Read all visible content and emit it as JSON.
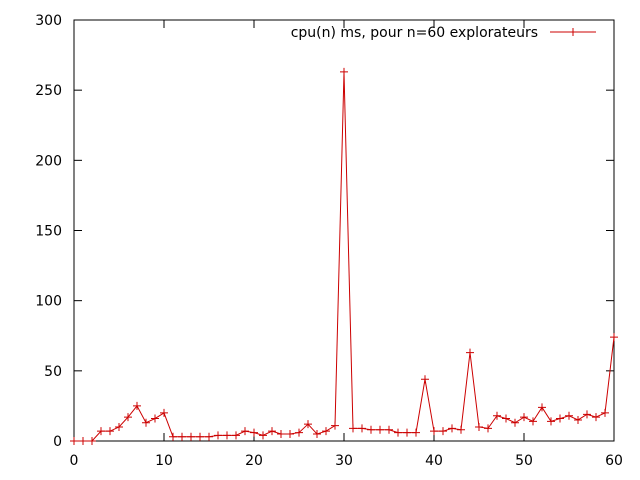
{
  "chart_data": {
    "type": "line",
    "xlim": [
      0,
      60
    ],
    "ylim": [
      0,
      300
    ],
    "x_ticks": [
      0,
      10,
      20,
      30,
      40,
      50,
      60
    ],
    "y_ticks": [
      0,
      50,
      100,
      150,
      200,
      250,
      300
    ],
    "grid": false,
    "legend_position": "top-right",
    "series": [
      {
        "name": "cpu(n) ms, pour n=60 explorateurs",
        "color": "#cc0000",
        "marker": "plus",
        "x": [
          0,
          1,
          2,
          3,
          4,
          5,
          6,
          7,
          8,
          9,
          10,
          11,
          12,
          13,
          14,
          15,
          16,
          17,
          18,
          19,
          20,
          21,
          22,
          23,
          24,
          25,
          26,
          27,
          28,
          29,
          30,
          31,
          32,
          33,
          34,
          35,
          36,
          37,
          38,
          39,
          40,
          41,
          42,
          43,
          44,
          45,
          46,
          47,
          48,
          49,
          50,
          51,
          52,
          53,
          54,
          55,
          56,
          57,
          58,
          59,
          60
        ],
        "y": [
          0,
          0,
          0,
          7,
          7,
          10,
          17,
          25,
          13,
          16,
          20,
          3,
          3,
          3,
          3,
          3,
          4,
          4,
          4,
          7,
          6,
          4,
          7,
          5,
          5,
          6,
          12,
          5,
          7,
          11,
          263,
          9,
          9,
          8,
          8,
          8,
          6,
          6,
          6,
          44,
          7,
          7,
          9,
          8,
          63,
          10,
          9,
          18,
          16,
          13,
          17,
          14,
          24,
          14,
          16,
          18,
          15,
          19,
          17,
          20,
          74
        ]
      }
    ]
  }
}
